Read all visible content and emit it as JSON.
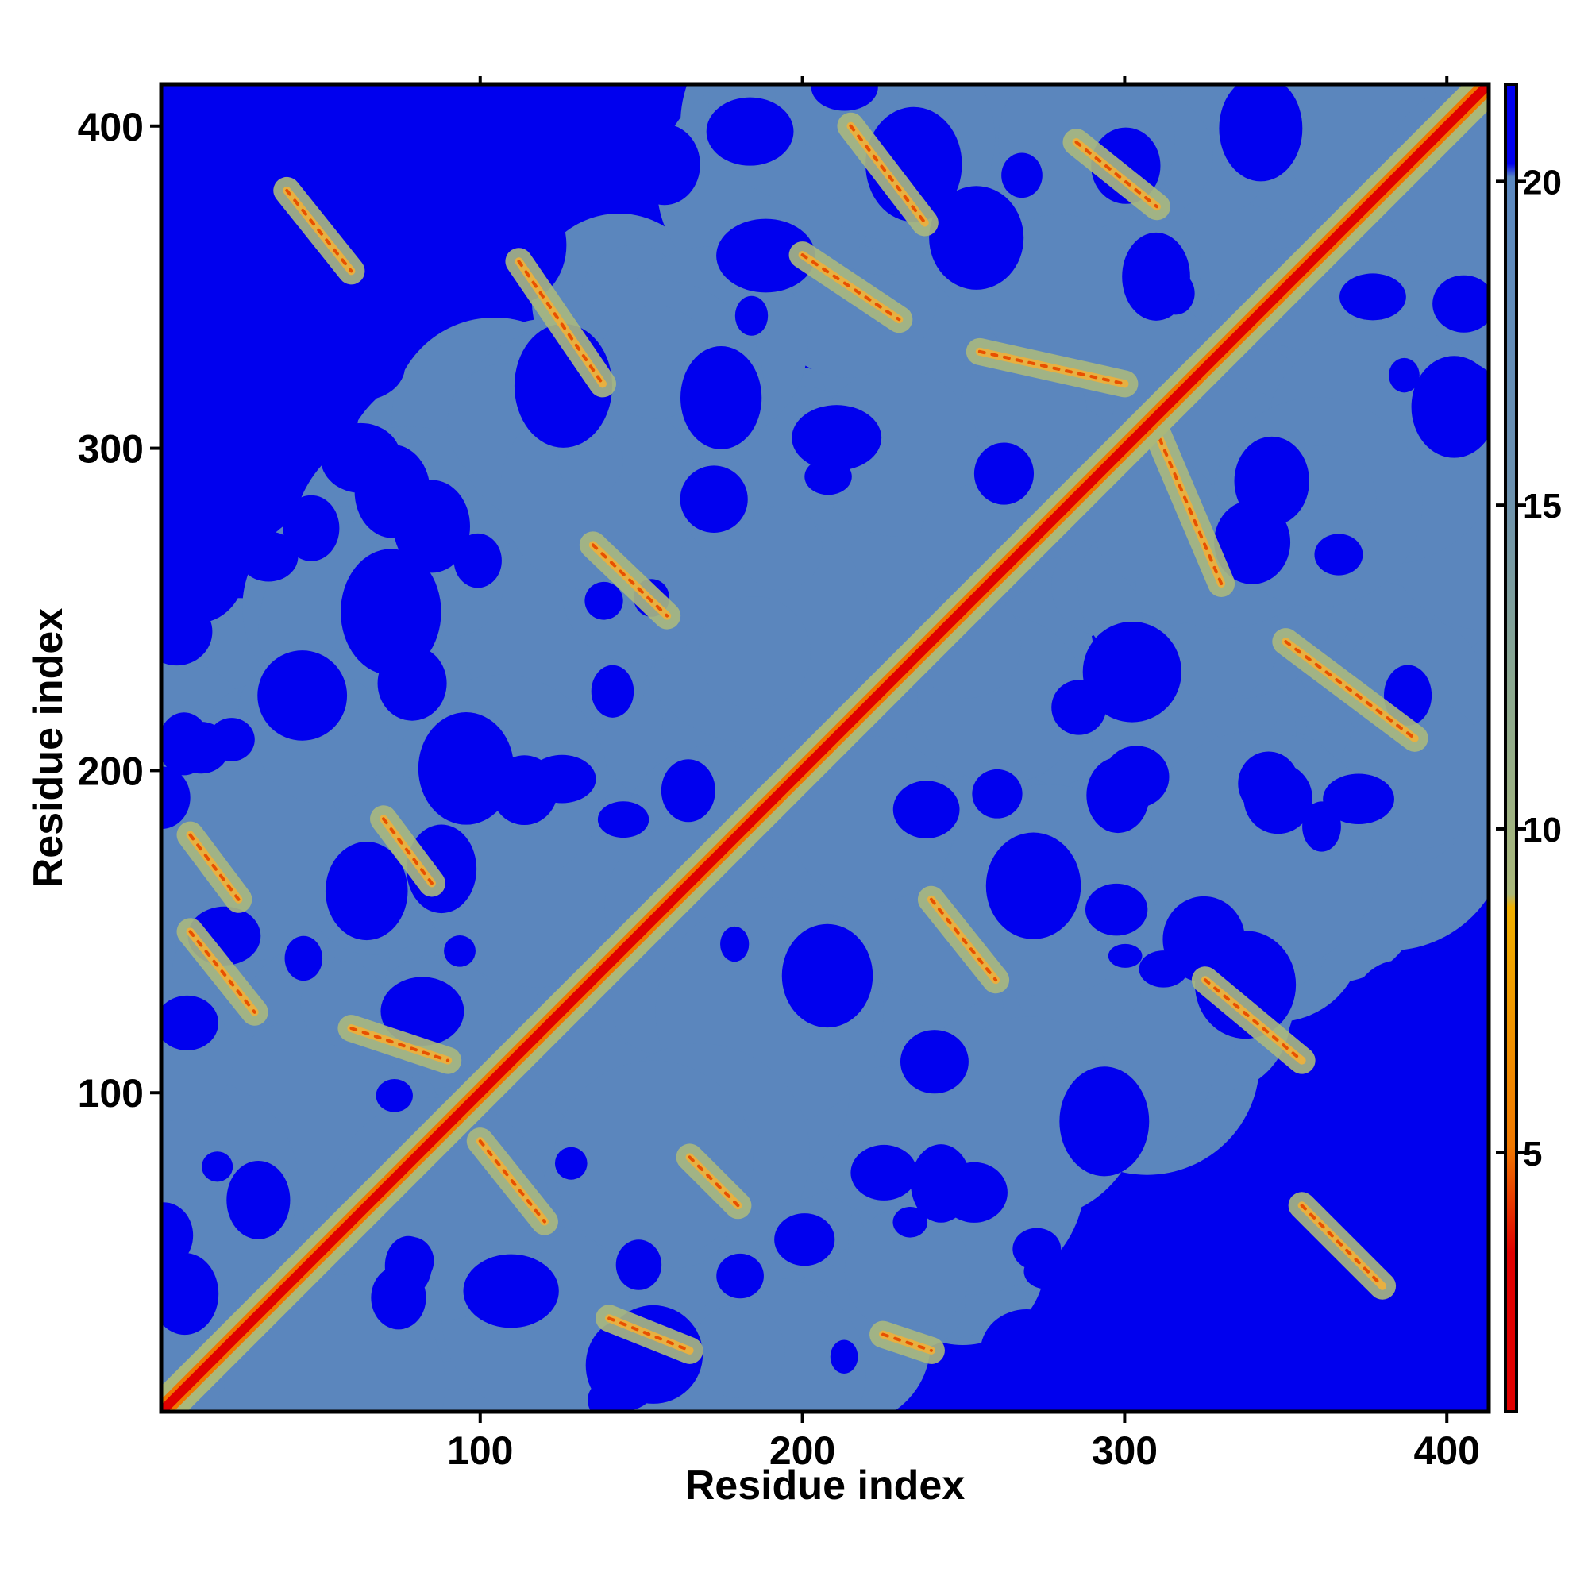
{
  "chart_data": {
    "type": "heatmap",
    "title": "",
    "xlabel": "Residue index",
    "ylabel": "Residue index",
    "xlim": [
      1,
      413
    ],
    "ylim": [
      1,
      413
    ],
    "x_ticks": [
      100,
      200,
      300,
      400
    ],
    "y_ticks": [
      100,
      200,
      300,
      400
    ],
    "colorbar": {
      "ticks": [
        5,
        10,
        15,
        20
      ],
      "range": [
        1,
        21.5
      ],
      "colors": [
        "#e50000",
        "#f07800",
        "#f0c000",
        "#b8c47a",
        "#5a8ac0",
        "#0000ee"
      ]
    },
    "value_semantics": "distance map; low values (red) along the diagonal, high values (blue) far from contact",
    "features": {
      "diagonal": {
        "from": 1,
        "to": 413,
        "value": 3
      },
      "contact_bands": [
        {
          "x1": 40,
          "y1": 380,
          "x2": 60,
          "y2": 355
        },
        {
          "x1": 112,
          "y1": 358,
          "x2": 138,
          "y2": 320
        },
        {
          "x1": 135,
          "y1": 270,
          "x2": 158,
          "y2": 248
        },
        {
          "x1": 215,
          "y1": 400,
          "x2": 238,
          "y2": 370
        },
        {
          "x1": 200,
          "y1": 360,
          "x2": 230,
          "y2": 340
        },
        {
          "x1": 255,
          "y1": 330,
          "x2": 300,
          "y2": 320
        },
        {
          "x1": 285,
          "y1": 395,
          "x2": 310,
          "y2": 375
        },
        {
          "x1": 330,
          "y1": 258,
          "x2": 310,
          "y2": 305
        },
        {
          "x1": 350,
          "y1": 240,
          "x2": 390,
          "y2": 210
        },
        {
          "x1": 10,
          "y1": 180,
          "x2": 25,
          "y2": 160
        },
        {
          "x1": 10,
          "y1": 150,
          "x2": 30,
          "y2": 125
        },
        {
          "x1": 60,
          "y1": 120,
          "x2": 90,
          "y2": 110
        },
        {
          "x1": 70,
          "y1": 185,
          "x2": 85,
          "y2": 165
        },
        {
          "x1": 100,
          "y1": 85,
          "x2": 120,
          "y2": 60
        },
        {
          "x1": 165,
          "y1": 80,
          "x2": 180,
          "y2": 65
        },
        {
          "x1": 140,
          "y1": 30,
          "x2": 165,
          "y2": 20
        },
        {
          "x1": 240,
          "y1": 160,
          "x2": 260,
          "y2": 135
        },
        {
          "x1": 325,
          "y1": 135,
          "x2": 355,
          "y2": 110
        },
        {
          "x1": 355,
          "y1": 65,
          "x2": 380,
          "y2": 40
        },
        {
          "x1": 225,
          "y1": 25,
          "x2": 240,
          "y2": 20
        }
      ]
    }
  }
}
